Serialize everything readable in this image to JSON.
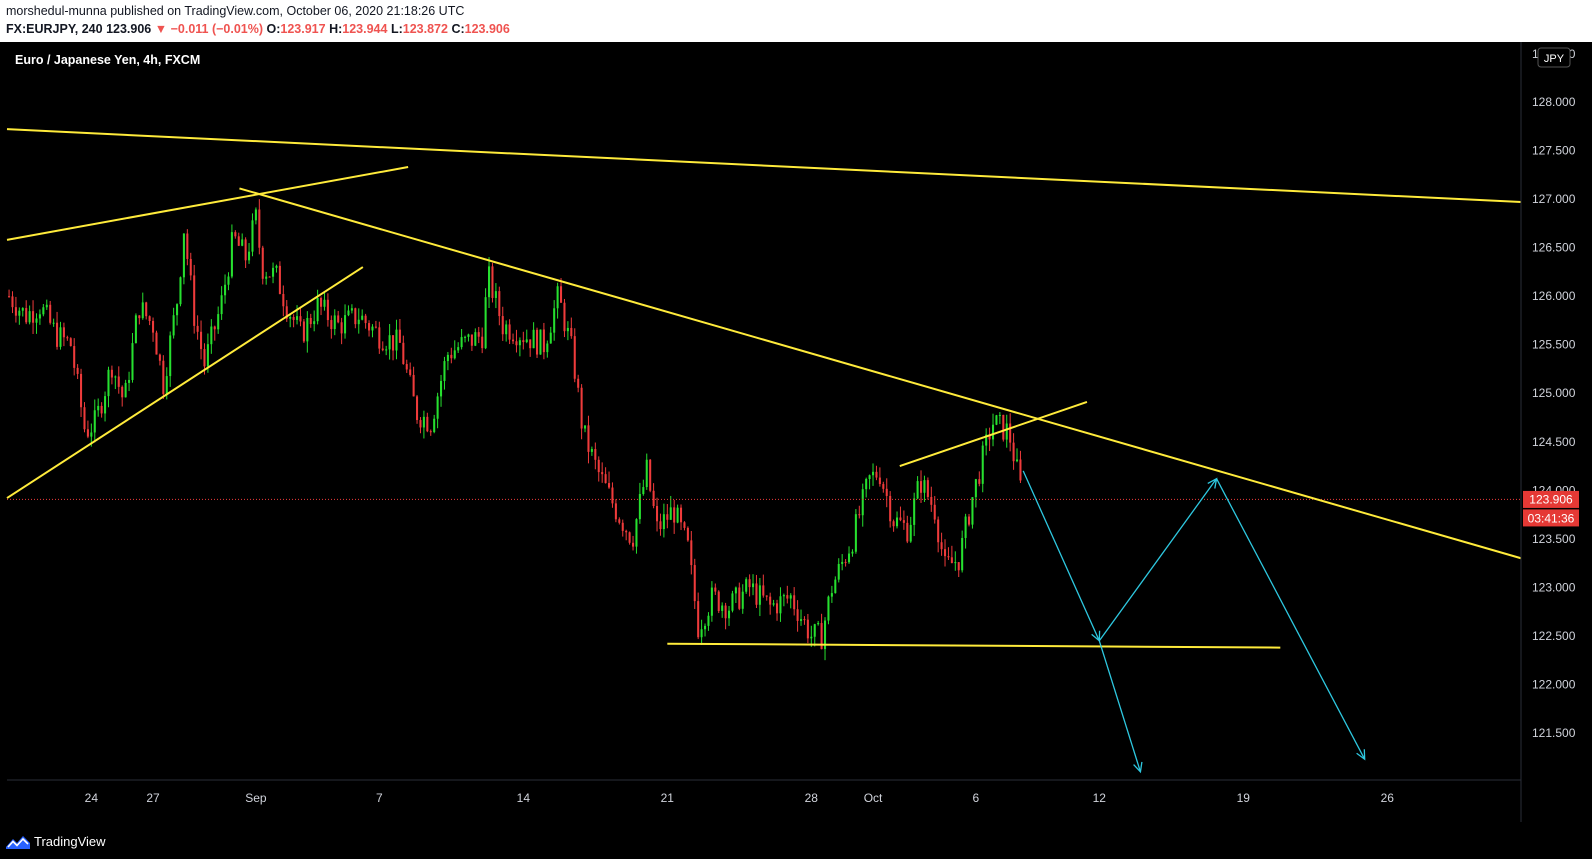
{
  "header": {
    "publisher_line": "morshedul-munna published on TradingView.com, October 06, 2020 21:18:26 UTC",
    "symbol": "FX:EURJPY, 240",
    "last": "123.906",
    "change_arrow": "▼",
    "change": "−0.011 (−0.01%)",
    "o_label": "O:",
    "o_value": "123.917",
    "h_label": "H:",
    "h_value": "123.944",
    "l_label": "L:",
    "l_value": "123.872",
    "c_label": "C:",
    "c_value": "123.906"
  },
  "footer": {
    "brand": "TradingView",
    "brand_icon": "tradingview-logo-icon"
  },
  "colors": {
    "background": "#000000",
    "up": "#26e02f",
    "down": "#ef3b3b",
    "trendline": "#ffeb3b",
    "projection": "#2ec8e0",
    "price_label_bg": "#e53935"
  },
  "chart_data": {
    "type": "candlestick",
    "title": "Euro / Japanese Yen, 4h, FXCM",
    "currency_badge": "JPY",
    "ylim": [
      121.0,
      128.5
    ],
    "y_ticks": [
      128.0,
      127.5,
      127.0,
      126.5,
      126.0,
      125.5,
      125.0,
      124.5,
      124.0,
      123.5,
      123.0,
      122.5,
      122.0,
      121.5
    ],
    "y_tick_labels": [
      "128.000",
      "127.500",
      "127.000",
      "126.500",
      "126.000",
      "125.500",
      "125.000",
      "124.500",
      "124.000",
      "123.500",
      "123.000",
      "122.500",
      "122.000",
      "121.500"
    ],
    "top_partial_label": "128.500",
    "last_price": 123.906,
    "last_price_label": "123.906",
    "countdown_label": "03:41:36",
    "x_labels": [
      "24",
      "27",
      "Sep",
      "7",
      "14",
      "21",
      "28",
      "Oct",
      "6",
      "12",
      "19",
      "26"
    ],
    "x_label_days": [
      24,
      27,
      32,
      38,
      45,
      52,
      59,
      62,
      67,
      73,
      80,
      87
    ],
    "days_range": [
      19.9,
      93.5
    ],
    "close_path": [
      {
        "d": 20.0,
        "p": 126.0
      },
      {
        "d": 20.8,
        "p": 125.8
      },
      {
        "d": 21.5,
        "p": 125.9
      },
      {
        "d": 22.3,
        "p": 125.6
      },
      {
        "d": 23.0,
        "p": 125.5
      },
      {
        "d": 23.7,
        "p": 124.6
      },
      {
        "d": 24.2,
        "p": 124.7
      },
      {
        "d": 25.0,
        "p": 125.3
      },
      {
        "d": 25.6,
        "p": 124.9
      },
      {
        "d": 26.3,
        "p": 125.9
      },
      {
        "d": 27.0,
        "p": 125.7
      },
      {
        "d": 27.5,
        "p": 125.1
      },
      {
        "d": 28.2,
        "p": 126.0
      },
      {
        "d": 28.5,
        "p": 126.7
      },
      {
        "d": 29.0,
        "p": 125.8
      },
      {
        "d": 29.5,
        "p": 125.3
      },
      {
        "d": 30.3,
        "p": 125.9
      },
      {
        "d": 30.9,
        "p": 126.6
      },
      {
        "d": 31.5,
        "p": 126.4
      },
      {
        "d": 32.0,
        "p": 126.8
      },
      {
        "d": 32.3,
        "p": 126.3
      },
      {
        "d": 33.0,
        "p": 126.2
      },
      {
        "d": 33.5,
        "p": 125.9
      },
      {
        "d": 34.2,
        "p": 125.6
      },
      {
        "d": 35.0,
        "p": 125.9
      },
      {
        "d": 36.0,
        "p": 125.7
      },
      {
        "d": 37.0,
        "p": 125.8
      },
      {
        "d": 38.0,
        "p": 125.6
      },
      {
        "d": 39.0,
        "p": 125.5
      },
      {
        "d": 39.8,
        "p": 124.8
      },
      {
        "d": 40.5,
        "p": 124.7
      },
      {
        "d": 41.3,
        "p": 125.4
      },
      {
        "d": 42.0,
        "p": 125.5
      },
      {
        "d": 43.0,
        "p": 125.6
      },
      {
        "d": 43.3,
        "p": 126.2
      },
      {
        "d": 44.0,
        "p": 125.7
      },
      {
        "d": 45.0,
        "p": 125.6
      },
      {
        "d": 46.0,
        "p": 125.5
      },
      {
        "d": 46.7,
        "p": 126.0
      },
      {
        "d": 47.4,
        "p": 125.4
      },
      {
        "d": 47.9,
        "p": 124.6
      },
      {
        "d": 48.6,
        "p": 124.2
      },
      {
        "d": 49.5,
        "p": 123.8
      },
      {
        "d": 50.3,
        "p": 123.5
      },
      {
        "d": 51.0,
        "p": 124.2
      },
      {
        "d": 51.5,
        "p": 123.6
      },
      {
        "d": 52.3,
        "p": 123.8
      },
      {
        "d": 53.0,
        "p": 123.4
      },
      {
        "d": 53.5,
        "p": 122.6
      },
      {
        "d": 54.2,
        "p": 122.9
      },
      {
        "d": 55.0,
        "p": 122.8
      },
      {
        "d": 56.0,
        "p": 123.0
      },
      {
        "d": 57.0,
        "p": 122.8
      },
      {
        "d": 58.0,
        "p": 122.9
      },
      {
        "d": 59.0,
        "p": 122.5
      },
      {
        "d": 59.5,
        "p": 122.5
      },
      {
        "d": 60.0,
        "p": 123.0
      },
      {
        "d": 61.0,
        "p": 123.5
      },
      {
        "d": 61.8,
        "p": 124.1
      },
      {
        "d": 62.3,
        "p": 124.2
      },
      {
        "d": 63.0,
        "p": 123.7
      },
      {
        "d": 63.7,
        "p": 123.6
      },
      {
        "d": 64.3,
        "p": 124.1
      },
      {
        "d": 65.0,
        "p": 123.8
      },
      {
        "d": 65.5,
        "p": 123.2
      },
      {
        "d": 66.2,
        "p": 123.3
      },
      {
        "d": 66.8,
        "p": 123.9
      },
      {
        "d": 67.3,
        "p": 124.3
      },
      {
        "d": 67.8,
        "p": 124.7
      },
      {
        "d": 68.6,
        "p": 124.6
      },
      {
        "d": 69.0,
        "p": 124.2
      },
      {
        "d": 69.3,
        "p": 123.9
      }
    ],
    "trend_lines": [
      {
        "x1": 19.9,
        "y1": 127.72,
        "x2": 93.5,
        "y2": 126.97
      },
      {
        "x1": 19.9,
        "y1": 126.58,
        "x2": 39.4,
        "y2": 127.33
      },
      {
        "x1": 31.2,
        "y1": 127.11,
        "x2": 93.5,
        "y2": 123.3
      },
      {
        "x1": 19.9,
        "y1": 123.92,
        "x2": 37.2,
        "y2": 126.3
      },
      {
        "x1": 52.0,
        "y1": 122.42,
        "x2": 81.8,
        "y2": 122.38
      },
      {
        "x1": 63.3,
        "y1": 124.25,
        "x2": 72.4,
        "y2": 124.91
      }
    ],
    "projection_arrows": [
      {
        "x1": 69.3,
        "y1": 124.2,
        "x2": 73.0,
        "y2": 122.45
      },
      {
        "x1": 73.0,
        "y1": 122.45,
        "x2": 78.7,
        "y2": 124.12
      },
      {
        "x1": 78.7,
        "y1": 124.12,
        "x2": 85.9,
        "y2": 121.23
      },
      {
        "x1": 73.0,
        "y1": 122.45,
        "x2": 75.0,
        "y2": 121.1
      }
    ]
  }
}
